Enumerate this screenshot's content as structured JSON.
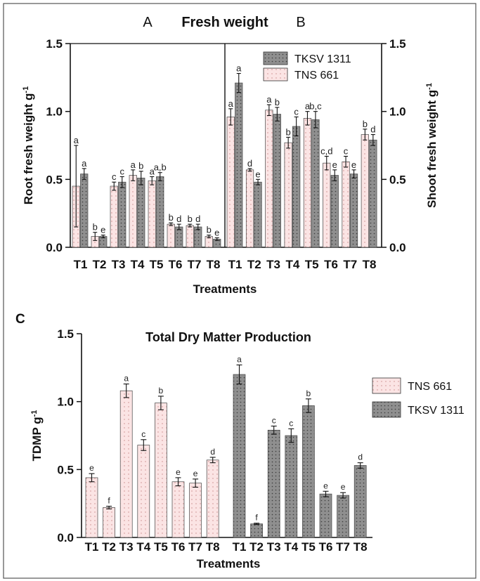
{
  "colors": {
    "tns_fill": "#fbe4e4",
    "tns_dot": "#c98a8a",
    "tksv_fill": "#8f8f8f",
    "tksv_dot": "#3c3c3c",
    "ink": "#111111"
  },
  "chart_data": [
    {
      "type": "bar",
      "panel_label": "A",
      "title": "Fresh weight",
      "ylabel": "Root fresh weight g-1",
      "ylabel_main": "Root fresh weight g",
      "ylabel_sup": "-1",
      "xlabel": "Treatments",
      "ylim": [
        0,
        1.5
      ],
      "yticks": [
        "0.0",
        "0.5",
        "1.0",
        "1.5"
      ],
      "ytick_values": [
        0,
        0.5,
        1.0,
        1.5
      ],
      "categories": [
        "T1",
        "T2",
        "T3",
        "T4",
        "T5",
        "T6",
        "T7",
        "T8"
      ],
      "series": [
        {
          "name": "TNS 661",
          "values": [
            0.45,
            0.08,
            0.45,
            0.53,
            0.49,
            0.17,
            0.16,
            0.08
          ],
          "errors": [
            0.3,
            0.03,
            0.03,
            0.04,
            0.03,
            0.01,
            0.01,
            0.01
          ],
          "letters": [
            "a",
            "b",
            "c",
            "a",
            "a",
            "b",
            "b",
            "b"
          ]
        },
        {
          "name": "TKSV 1311",
          "values": [
            0.54,
            0.08,
            0.48,
            0.51,
            0.52,
            0.15,
            0.15,
            0.06
          ],
          "errors": [
            0.04,
            0.01,
            0.04,
            0.05,
            0.03,
            0.02,
            0.02,
            0.01
          ],
          "letters": [
            "a",
            "e",
            "c",
            "b",
            "a,b",
            "d",
            "d",
            "e"
          ]
        }
      ]
    },
    {
      "type": "bar",
      "panel_label": "B",
      "ylabel": "Shoot fresh weight g-1",
      "ylabel_main": "Shoot fresh weight g",
      "ylabel_sup": "-1",
      "ylim": [
        0,
        1.5
      ],
      "yticks": [
        "0.0",
        "0.5",
        "1.0",
        "1.5"
      ],
      "ytick_values": [
        0,
        0.5,
        1.0,
        1.5
      ],
      "categories": [
        "T1",
        "T2",
        "T3",
        "T4",
        "T5",
        "T6",
        "T7",
        "T8"
      ],
      "legend": [
        "TKSV 1311",
        "TNS 661"
      ],
      "series": [
        {
          "name": "TNS 661",
          "values": [
            0.96,
            0.57,
            1.01,
            0.77,
            0.95,
            0.62,
            0.63,
            0.83
          ],
          "errors": [
            0.06,
            0.01,
            0.04,
            0.04,
            0.05,
            0.05,
            0.04,
            0.04
          ],
          "letters": [
            "a",
            "d",
            "a",
            "b",
            "a",
            "c,d",
            "c",
            "b"
          ]
        },
        {
          "name": "TKSV 1311",
          "values": [
            1.21,
            0.48,
            0.98,
            0.89,
            0.94,
            0.53,
            0.54,
            0.79
          ],
          "errors": [
            0.07,
            0.02,
            0.05,
            0.07,
            0.06,
            0.04,
            0.03,
            0.04
          ],
          "letters": [
            "a",
            "e",
            "b",
            "c",
            "b,c",
            "e",
            "e",
            "d"
          ]
        }
      ]
    },
    {
      "type": "bar",
      "panel_label": "C",
      "title": "Total Dry Matter Production",
      "ylabel": "TDMP g-1",
      "ylabel_main": "TDMP g",
      "ylabel_sup": "-1",
      "xlabel": "Treatments",
      "ylim": [
        0,
        1.5
      ],
      "yticks": [
        "0.0",
        "0.5",
        "1.0",
        "1.5"
      ],
      "ytick_values": [
        0,
        0.5,
        1.0,
        1.5
      ],
      "categories": [
        "T1",
        "T2",
        "T3",
        "T4",
        "T5",
        "T6",
        "T7",
        "T8"
      ],
      "legend": [
        "TNS 661",
        "TKSV 1311"
      ],
      "series": [
        {
          "name": "TNS 661",
          "values": [
            0.44,
            0.22,
            1.08,
            0.68,
            0.99,
            0.41,
            0.4,
            0.57
          ],
          "errors": [
            0.03,
            0.01,
            0.05,
            0.04,
            0.05,
            0.03,
            0.03,
            0.02
          ],
          "letters": [
            "e",
            "f",
            "a",
            "c",
            "b",
            "e",
            "e",
            "d"
          ]
        },
        {
          "name": "TKSV 1311",
          "values": [
            1.2,
            0.1,
            0.79,
            0.75,
            0.97,
            0.32,
            0.31,
            0.53
          ],
          "errors": [
            0.07,
            0.005,
            0.03,
            0.05,
            0.05,
            0.02,
            0.02,
            0.02
          ],
          "letters": [
            "a",
            "f",
            "c",
            "c",
            "b",
            "e",
            "e",
            "d"
          ]
        }
      ]
    }
  ]
}
